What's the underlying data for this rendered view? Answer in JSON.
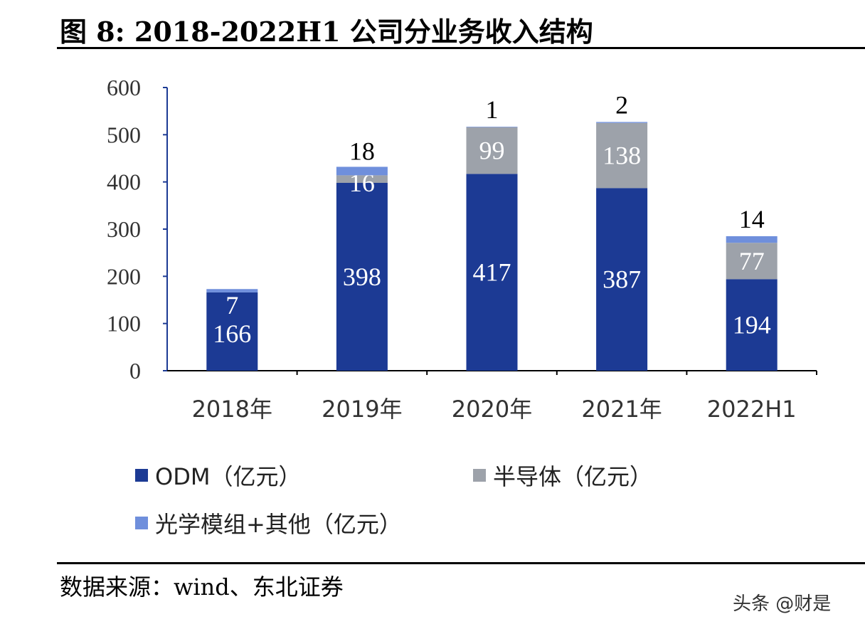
{
  "title": "图 8:  2018-2022H1 公司分业务收入结构",
  "source": "数据来源：wind、东北证券",
  "watermark": "头条 @财是",
  "chart_data": {
    "type": "bar",
    "stacked": true,
    "categories": [
      "2018年",
      "2019年",
      "2020年",
      "2021年",
      "2022H1"
    ],
    "series": [
      {
        "name": "ODM（亿元）",
        "color": "#1c3a94",
        "values": [
          166,
          398,
          417,
          387,
          194
        ]
      },
      {
        "name": "半导体（亿元）",
        "color": "#9da2aa",
        "values": [
          0,
          16,
          99,
          138,
          77
        ]
      },
      {
        "name": "光学模组+其他（亿元）",
        "color": "#6f8fdc",
        "values": [
          7,
          18,
          1,
          2,
          14
        ]
      }
    ],
    "ylim": [
      0,
      600
    ],
    "yticks": [
      0,
      100,
      200,
      300,
      400,
      500,
      600
    ],
    "grid": false,
    "legend": "bottom"
  }
}
